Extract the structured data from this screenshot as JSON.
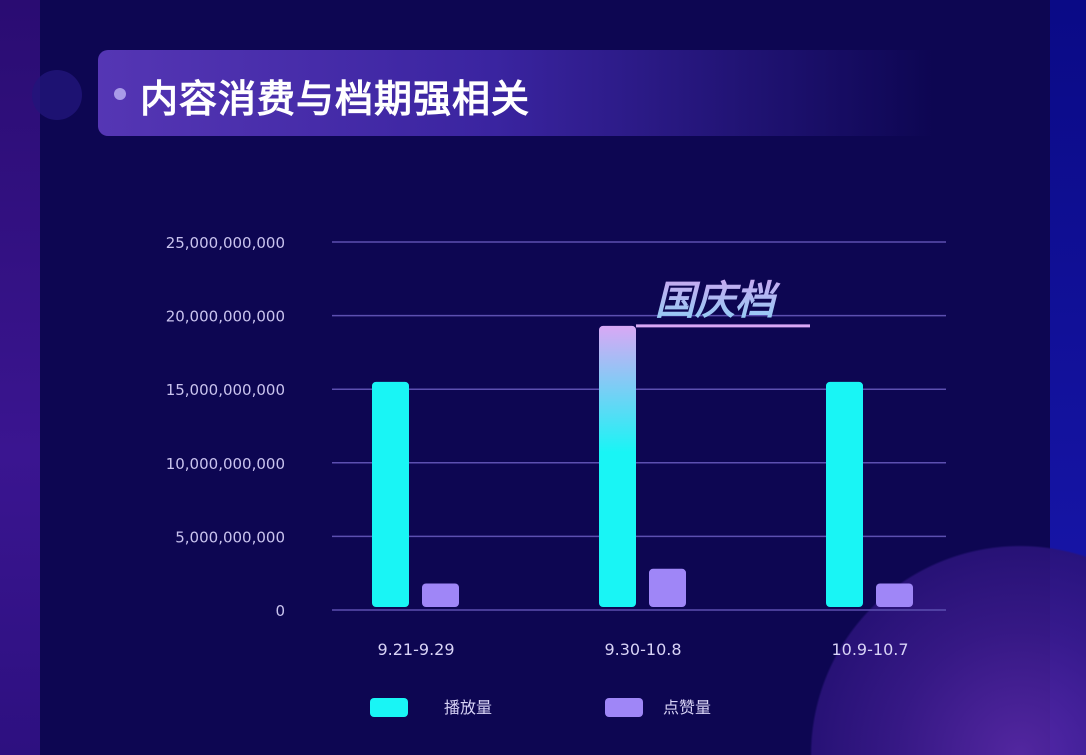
{
  "header": {
    "title": "内容消费与档期强相关"
  },
  "chart_data": {
    "type": "bar",
    "title": "",
    "categories": [
      "9.21-9.29",
      "9.30-10.8",
      "10.9-10.7"
    ],
    "series": [
      {
        "name": "播放量",
        "values": [
          15500000000,
          19300000000,
          15500000000
        ],
        "color": "#19f5f5"
      },
      {
        "name": "点赞量",
        "values": [
          1800000000,
          2800000000,
          1800000000
        ],
        "color": "#9f86f7"
      }
    ],
    "ylim": [
      0,
      25000000000
    ],
    "yticks": [
      "0",
      "5,000,000,000",
      "10,000,000,000",
      "15,000,000,000",
      "20,000,000,000",
      "25,000,000,000"
    ],
    "ytick_values": [
      0,
      5000000000,
      10000000000,
      15000000000,
      20000000000,
      25000000000
    ],
    "grid": true,
    "legend": "bottom",
    "annotation": {
      "text": "国庆档",
      "category": "9.30-10.8",
      "highlight_gradient": [
        "#d9a8f5",
        "#19f5f5"
      ]
    }
  }
}
